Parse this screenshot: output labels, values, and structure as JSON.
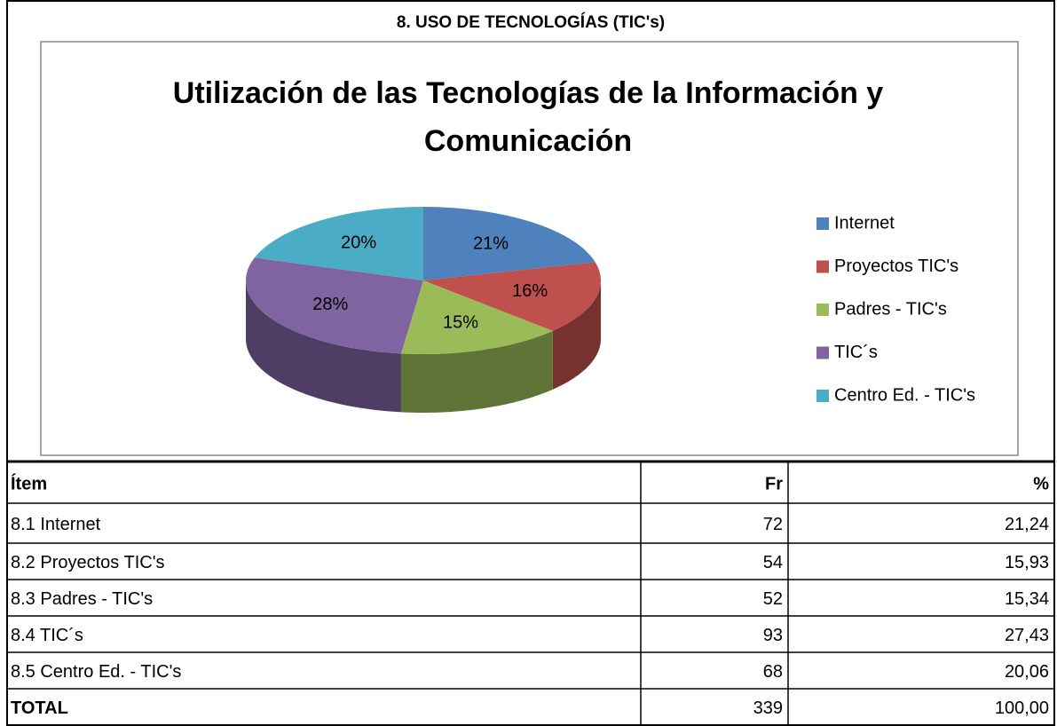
{
  "header": {
    "title": "8. USO DE TECNOLOGÍAS (TIC's)"
  },
  "chart_data": {
    "type": "pie",
    "title": "Utilización de las Tecnologías de la Información y Comunicación",
    "categories": [
      "Internet",
      "Proyectos TIC's",
      "Padres - TIC's",
      "TIC´s",
      "Centro Ed. - TIC's"
    ],
    "values": [
      21,
      16,
      15,
      28,
      20
    ],
    "value_labels": [
      "21%",
      "16%",
      "15%",
      "28%",
      "20%"
    ],
    "colors": [
      "#4f81bd",
      "#c0504d",
      "#9bbb59",
      "#8064a2",
      "#4bacc6"
    ],
    "legend": "right"
  },
  "table": {
    "columns": [
      "Ítem",
      "Fr",
      "%"
    ],
    "rows": [
      [
        "8.1 Internet",
        72,
        "21,24"
      ],
      [
        "8.2 Proyectos TIC's",
        54,
        "15,93"
      ],
      [
        "8.3 Padres - TIC's",
        52,
        "15,34"
      ],
      [
        "8.4 TIC´s",
        93,
        "27,43"
      ],
      [
        "8.5 Centro Ed. - TIC's",
        68,
        "20,06"
      ]
    ],
    "total": [
      "TOTAL",
      339,
      "100,00"
    ]
  }
}
